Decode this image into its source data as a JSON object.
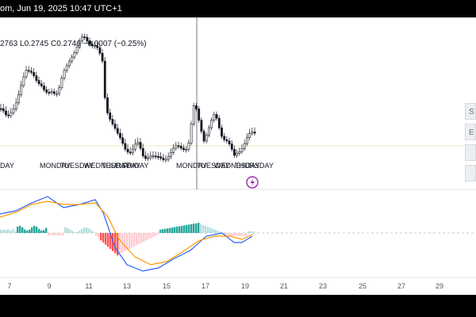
{
  "header": {
    "title_fragment": "om, Jun 19, 2025 10:47 UTC+1"
  },
  "ohlc": {
    "open_fragment": "2763",
    "low": "0.2745",
    "close": "0.2746",
    "change": "−0.0007 (−0.25%)"
  },
  "day_labels_left": [
    "DAY",
    "MONDAY",
    "TUESDAY",
    "WEDNESDAY",
    "THURSDAY",
    "FRIDAY"
  ],
  "day_labels_right": [
    "MONDAY",
    "TUESDAY",
    "WEDNESDAY",
    "THURSDAY"
  ],
  "side_buttons": [
    "S",
    "E",
    "",
    ""
  ],
  "x_axis": [
    "7",
    "9",
    "11",
    "13",
    "15",
    "17",
    "19",
    "21",
    "23",
    "25",
    "27",
    "29"
  ],
  "colors": {
    "up": "#26a69a",
    "down": "#ef5350",
    "macd": "#2962ff",
    "signal": "#ff9800",
    "lightning": "#9c27b0"
  },
  "icons": {
    "lightning": "lightning-icon"
  }
}
